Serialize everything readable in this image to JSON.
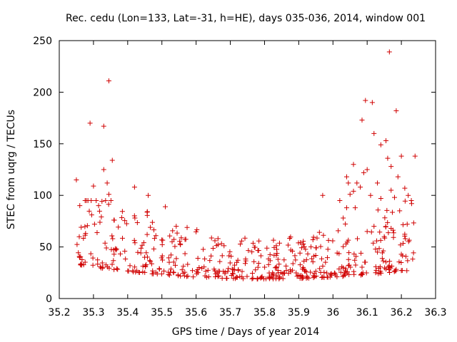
{
  "chart_data": {
    "type": "scatter",
    "title": "Rec. cedu (Lon=133, Lat=-31, h=HE), days 035-036, 2014, window 001",
    "xlabel": "GPS time / Days of year 2014",
    "ylabel": "STEC from uqrg / TECUs",
    "xlim": [
      35.2,
      36.3
    ],
    "ylim": [
      0,
      250
    ],
    "xticks": [
      "35.2",
      "35.3",
      "35.4",
      "35.5",
      "35.6",
      "35.7",
      "35.8",
      "35.9",
      "36",
      "36.1",
      "36.2",
      "36.3"
    ],
    "yticks": [
      "0",
      "50",
      "100",
      "150",
      "200",
      "250"
    ],
    "grid": false,
    "marker": "+",
    "color": "#d00000",
    "series": [
      {
        "name": "STEC",
        "points": [
          [
            35.25,
            115
          ],
          [
            35.26,
            90
          ],
          [
            35.29,
            170
          ],
          [
            35.33,
            167
          ],
          [
            35.345,
            211
          ],
          [
            35.34,
            112
          ],
          [
            35.355,
            134
          ],
          [
            35.3,
            109
          ],
          [
            35.33,
            125
          ],
          [
            35.345,
            101
          ],
          [
            35.315,
            90
          ],
          [
            35.42,
            108
          ],
          [
            35.46,
            100
          ],
          [
            35.51,
            89
          ],
          [
            35.97,
            100
          ],
          [
            36.04,
            118
          ],
          [
            36.06,
            104
          ],
          [
            36.085,
            173
          ],
          [
            36.095,
            192
          ],
          [
            36.115,
            190
          ],
          [
            36.12,
            160
          ],
          [
            36.14,
            149
          ],
          [
            36.165,
            239
          ],
          [
            36.185,
            182
          ],
          [
            36.155,
            153
          ],
          [
            36.16,
            136
          ],
          [
            36.17,
            128
          ],
          [
            36.09,
            122
          ],
          [
            36.1,
            125
          ],
          [
            36.07,
            112
          ],
          [
            36.2,
            138
          ],
          [
            36.24,
            138
          ],
          [
            36.06,
            130
          ],
          [
            36.05,
            101
          ],
          [
            36.13,
            112
          ],
          [
            36.21,
            107
          ],
          [
            36.18,
            98
          ],
          [
            36.065,
            88
          ],
          [
            36.08,
            108
          ],
          [
            36.11,
            100
          ],
          [
            36.14,
            97
          ],
          [
            36.23,
            92
          ],
          [
            36.22,
            100
          ],
          [
            36.195,
            85
          ],
          [
            36.17,
            105
          ],
          [
            36.19,
            118
          ],
          [
            36.04,
            88
          ],
          [
            36.03,
            78
          ],
          [
            36.1,
            65
          ],
          [
            36.12,
            70
          ],
          [
            36.15,
            60
          ],
          [
            36.17,
            68
          ],
          [
            36.02,
            95
          ],
          [
            36.045,
            112
          ]
        ]
      }
    ]
  }
}
